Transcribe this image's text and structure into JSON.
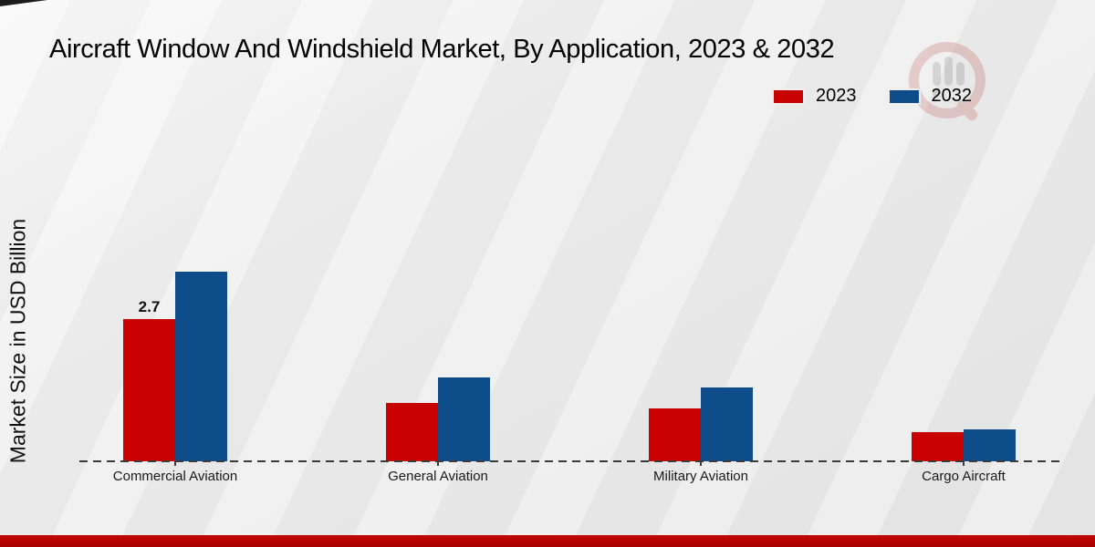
{
  "title": "Aircraft Window And Windshield Market, By Application, 2023 & 2032",
  "y_axis_label": "Market Size in USD Billion",
  "legend": [
    {
      "label": "2023",
      "color": "#c80101"
    },
    {
      "label": "2032",
      "color": "#0f4c8a"
    }
  ],
  "watermark_icon": "magnifier-bar-chart-logo",
  "page": {
    "footer_color": "#b30000",
    "background_color": "#e9e9e9",
    "axis_color": "#3b3b3b"
  },
  "chart_data": {
    "type": "bar",
    "title": "Aircraft Window And Windshield Market, By Application, 2023 & 2032",
    "categories": [
      "Commercial Aviation",
      "General Aviation",
      "Military Aviation",
      "Cargo Aircraft"
    ],
    "series": [
      {
        "name": "2023",
        "color": "#c80101",
        "values": [
          2.7,
          1.1,
          1.0,
          0.55
        ]
      },
      {
        "name": "2032",
        "color": "#0f4c8a",
        "values": [
          3.6,
          1.6,
          1.4,
          0.6
        ]
      }
    ],
    "data_labels": [
      {
        "series": "2023",
        "category": "Commercial Aviation",
        "text": "2.7"
      }
    ],
    "xlabel": "",
    "ylabel": "Market Size in USD Billion",
    "ylim": [
      0,
      4.2
    ],
    "grid": false,
    "y_ticks_visible": false,
    "baseline_style": "dashed",
    "legend_position": "top-right"
  }
}
